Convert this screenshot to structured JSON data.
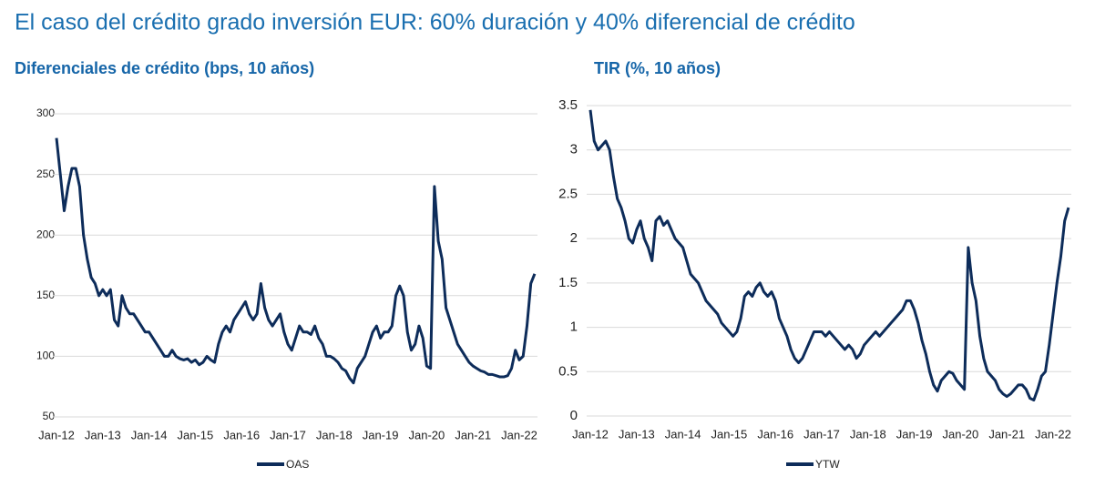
{
  "title": "El caso del crédito grado inversión EUR: 60% duración y 40% diferencial de crédito",
  "chart_data": [
    {
      "type": "line",
      "title": "Diferenciales de crédito (bps, 10 años)",
      "categories": [
        "Jan-12",
        null,
        null,
        null,
        null,
        null,
        null,
        null,
        null,
        null,
        null,
        null,
        "Jan-13",
        null,
        null,
        null,
        null,
        null,
        null,
        null,
        null,
        null,
        null,
        null,
        "Jan-14",
        null,
        null,
        null,
        null,
        null,
        null,
        null,
        null,
        null,
        null,
        null,
        "Jan-15",
        null,
        null,
        null,
        null,
        null,
        null,
        null,
        null,
        null,
        null,
        null,
        "Jan-16",
        null,
        null,
        null,
        null,
        null,
        null,
        null,
        null,
        null,
        null,
        null,
        "Jan-17",
        null,
        null,
        null,
        null,
        null,
        null,
        null,
        null,
        null,
        null,
        null,
        "Jan-18",
        null,
        null,
        null,
        null,
        null,
        null,
        null,
        null,
        null,
        null,
        null,
        "Jan-19",
        null,
        null,
        null,
        null,
        null,
        null,
        null,
        null,
        null,
        null,
        null,
        "Jan-20",
        null,
        null,
        null,
        null,
        null,
        null,
        null,
        null,
        null,
        null,
        null,
        "Jan-21",
        null,
        null,
        null,
        null,
        null,
        null,
        null,
        null,
        null,
        null,
        null,
        "Jan-22",
        null,
        null,
        null,
        null
      ],
      "series": [
        {
          "name": "OAS",
          "color": "#0d2c5a",
          "values": [
            280,
            250,
            220,
            240,
            255,
            255,
            240,
            200,
            180,
            165,
            160,
            150,
            155,
            150,
            155,
            130,
            125,
            150,
            140,
            135,
            135,
            130,
            125,
            120,
            120,
            115,
            110,
            105,
            100,
            100,
            105,
            100,
            98,
            97,
            98,
            95,
            97,
            93,
            95,
            100,
            97,
            95,
            110,
            120,
            125,
            120,
            130,
            135,
            140,
            145,
            135,
            130,
            135,
            160,
            140,
            130,
            125,
            130,
            135,
            120,
            110,
            105,
            115,
            125,
            120,
            120,
            118,
            125,
            115,
            110,
            100,
            100,
            98,
            95,
            90,
            88,
            82,
            78,
            90,
            95,
            100,
            110,
            120,
            125,
            115,
            120,
            120,
            125,
            150,
            158,
            150,
            120,
            105,
            110,
            125,
            115,
            92,
            90,
            240,
            195,
            180,
            140,
            130,
            120,
            110,
            105,
            100,
            95,
            92,
            90,
            88,
            87,
            85,
            85,
            84,
            83,
            83,
            84,
            90,
            105,
            97,
            100,
            125,
            160,
            168
          ]
        }
      ],
      "ylim": [
        50,
        300
      ],
      "yticks": [
        50,
        100,
        150,
        200,
        250,
        300
      ],
      "grid": true,
      "legend": "bottom"
    },
    {
      "type": "line",
      "title": "TIR (%, 10 años)",
      "categories": [
        "Jan-12",
        null,
        null,
        null,
        null,
        null,
        null,
        null,
        null,
        null,
        null,
        null,
        "Jan-13",
        null,
        null,
        null,
        null,
        null,
        null,
        null,
        null,
        null,
        null,
        null,
        "Jan-14",
        null,
        null,
        null,
        null,
        null,
        null,
        null,
        null,
        null,
        null,
        null,
        "Jan-15",
        null,
        null,
        null,
        null,
        null,
        null,
        null,
        null,
        null,
        null,
        null,
        "Jan-16",
        null,
        null,
        null,
        null,
        null,
        null,
        null,
        null,
        null,
        null,
        null,
        "Jan-17",
        null,
        null,
        null,
        null,
        null,
        null,
        null,
        null,
        null,
        null,
        null,
        "Jan-18",
        null,
        null,
        null,
        null,
        null,
        null,
        null,
        null,
        null,
        null,
        null,
        "Jan-19",
        null,
        null,
        null,
        null,
        null,
        null,
        null,
        null,
        null,
        null,
        null,
        "Jan-20",
        null,
        null,
        null,
        null,
        null,
        null,
        null,
        null,
        null,
        null,
        null,
        "Jan-21",
        null,
        null,
        null,
        null,
        null,
        null,
        null,
        null,
        null,
        null,
        null,
        "Jan-22",
        null,
        null,
        null,
        null
      ],
      "series": [
        {
          "name": "YTW",
          "color": "#0d2c5a",
          "values": [
            3.45,
            3.1,
            3.0,
            3.05,
            3.1,
            3.0,
            2.7,
            2.45,
            2.35,
            2.2,
            2.0,
            1.95,
            2.1,
            2.2,
            2.0,
            1.9,
            1.75,
            2.2,
            2.25,
            2.15,
            2.2,
            2.1,
            2.0,
            1.95,
            1.9,
            1.75,
            1.6,
            1.55,
            1.5,
            1.4,
            1.3,
            1.25,
            1.2,
            1.15,
            1.05,
            1.0,
            0.95,
            0.9,
            0.95,
            1.1,
            1.35,
            1.4,
            1.35,
            1.45,
            1.5,
            1.4,
            1.35,
            1.4,
            1.3,
            1.1,
            1.0,
            0.9,
            0.75,
            0.65,
            0.6,
            0.65,
            0.75,
            0.85,
            0.95,
            0.95,
            0.95,
            0.9,
            0.95,
            0.9,
            0.85,
            0.8,
            0.75,
            0.8,
            0.75,
            0.65,
            0.7,
            0.8,
            0.85,
            0.9,
            0.95,
            0.9,
            0.95,
            1.0,
            1.05,
            1.1,
            1.15,
            1.2,
            1.3,
            1.3,
            1.2,
            1.05,
            0.85,
            0.7,
            0.5,
            0.35,
            0.28,
            0.4,
            0.45,
            0.5,
            0.48,
            0.4,
            0.35,
            0.3,
            1.9,
            1.5,
            1.3,
            0.9,
            0.65,
            0.5,
            0.45,
            0.4,
            0.3,
            0.25,
            0.22,
            0.25,
            0.3,
            0.35,
            0.35,
            0.3,
            0.2,
            0.18,
            0.3,
            0.45,
            0.5,
            0.8,
            1.15,
            1.5,
            1.8,
            2.2,
            2.35
          ]
        }
      ],
      "ylim": [
        0,
        3.5
      ],
      "yticks": [
        0,
        0.5,
        1,
        1.5,
        2,
        2.5,
        3,
        3.5
      ],
      "grid": true,
      "legend": "bottom"
    }
  ]
}
